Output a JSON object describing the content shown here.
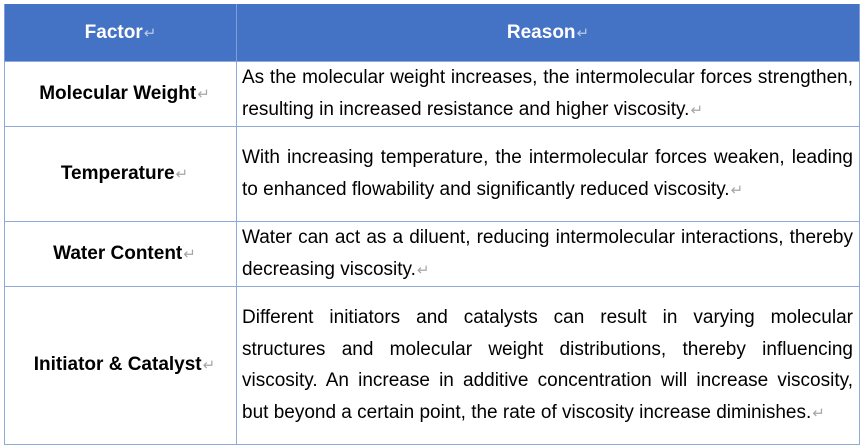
{
  "table": {
    "headers": [
      "Factor",
      "Reason"
    ],
    "paragraph_mark": "↵",
    "rows": [
      {
        "factor": "Molecular Weight",
        "reason": "As the molecular weight increases, the intermolecular forces strengthen, resulting in increased resistance and higher viscosity."
      },
      {
        "factor": "Temperature",
        "reason": "With increasing temperature, the intermolecular forces weaken, leading to enhanced flowability and significantly reduced viscosity."
      },
      {
        "factor": "Water Content",
        "reason": "Water can act as a diluent, reducing intermolecular interactions, thereby decreasing viscosity."
      },
      {
        "factor": "Initiator & Catalyst",
        "reason": "Different initiators and catalysts can result in varying molecular structures and molecular weight distributions, thereby influencing viscosity. An increase in additive concentration will increase viscosity, but beyond a certain point, the rate of viscosity increase diminishes."
      }
    ]
  }
}
